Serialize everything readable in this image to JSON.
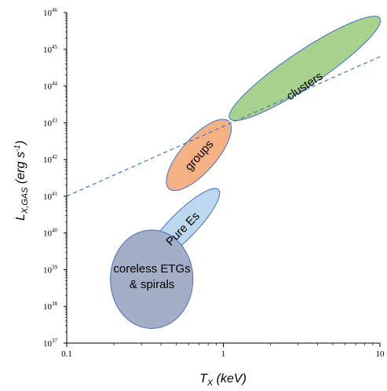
{
  "chart_data": {
    "type": "scatter",
    "title": "",
    "xlabel": {
      "base": "T",
      "sub": "X",
      "unit": "(keV)"
    },
    "ylabel": {
      "base": "L",
      "sub": "X,GAS",
      "unit_a": "(erg s",
      "unit_sup": "-1",
      "unit_b": ")"
    },
    "x_scale": "log",
    "y_scale": "log",
    "xlim": [
      0.1,
      10
    ],
    "ylim": [
      1e+37,
      1e+46
    ],
    "x_ticks": [
      {
        "value": 0.1,
        "label": "0.1"
      },
      {
        "value": 1,
        "label": "1"
      },
      {
        "value": 10,
        "label": "10"
      }
    ],
    "y_ticks": [
      {
        "value": 1e+37,
        "mant": "10",
        "exp": "37"
      },
      {
        "value": 1e+38,
        "mant": "10",
        "exp": "38"
      },
      {
        "value": 1e+39,
        "mant": "10",
        "exp": "39"
      },
      {
        "value": 1e+40,
        "mant": "10",
        "exp": "40"
      },
      {
        "value": 1e+41,
        "mant": "10",
        "exp": "41"
      },
      {
        "value": 1e+42,
        "mant": "10",
        "exp": "42"
      },
      {
        "value": 1e+43,
        "mant": "10",
        "exp": "43"
      },
      {
        "value": 1e+44,
        "mant": "10",
        "exp": "44"
      },
      {
        "value": 1e+45,
        "mant": "10",
        "exp": "45"
      },
      {
        "value": 1e+46,
        "mant": "10",
        "exp": "46"
      }
    ],
    "grid": false,
    "dashed_line": {
      "x": [
        0.1,
        10
      ],
      "y": [
        1e+41,
        6.3e+44
      ],
      "color": "#4472c4"
    },
    "regions": [
      {
        "id": "clusters",
        "label_lines": [
          "clusters"
        ],
        "x_range": [
          1.1,
          10
        ],
        "y_range": [
          1.3e+43,
          7e+45
        ],
        "center": {
          "x": 3.3,
          "y": 1e+44
        },
        "fill": "#a9d18e",
        "stroke": "#4472c4",
        "label_rotation": "along"
      },
      {
        "id": "groups",
        "label_lines": [
          "groups"
        ],
        "x_range": [
          0.45,
          1.08
        ],
        "y_range": [
          1.6e+41,
          1.1e+43
        ],
        "center": {
          "x": 0.7,
          "y": 1.3e+42
        },
        "fill": "#f4b183",
        "stroke": "#4472c4",
        "label_rotation": "along"
      },
      {
        "id": "pure-es",
        "label_lines": [
          "Pure Es"
        ],
        "x_range": [
          0.32,
          0.93
        ],
        "y_range": [
          1.5e+39,
          1.5e+41
        ],
        "center": {
          "x": 0.55,
          "y": 1.3e+40
        },
        "fill": "#bdd7ee",
        "stroke": "#4472c4",
        "label_rotation": "along"
      },
      {
        "id": "coreless-etgs-spirals",
        "label_lines": [
          "coreless ETGs",
          "& spirals"
        ],
        "x_range": [
          0.19,
          0.64
        ],
        "y_range": [
          2.5e+37,
          1.2e+40
        ],
        "center": {
          "x": 0.35,
          "y": 6.5e+38
        },
        "fill": "#a4aec6",
        "stroke": "#4472c4",
        "label_rotation": "none"
      }
    ]
  }
}
